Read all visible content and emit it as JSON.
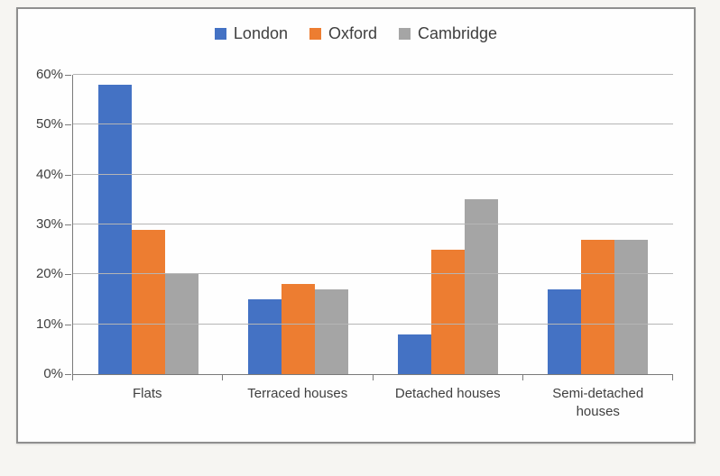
{
  "chart_data": {
    "type": "bar",
    "title": "",
    "xlabel": "",
    "ylabel": "",
    "categories": [
      "Flats",
      "Terraced houses",
      "Detached houses",
      "Semi-detached houses"
    ],
    "series": [
      {
        "name": "London",
        "color": "#4472C4",
        "values": [
          58,
          15,
          8,
          17
        ]
      },
      {
        "name": "Oxford",
        "color": "#ED7D31",
        "values": [
          29,
          18,
          25,
          27
        ]
      },
      {
        "name": "Cambridge",
        "color": "#A5A5A5",
        "values": [
          20,
          17,
          35,
          27
        ]
      }
    ],
    "ylim": [
      0,
      60
    ],
    "ytick_step": 10,
    "ytick_labels": [
      "0%",
      "10%",
      "20%",
      "30%",
      "40%",
      "50%",
      "60%"
    ],
    "grid": true,
    "legend_position": "top-center",
    "colors": {
      "page_background": "#f6f5f2",
      "plot_background": "#fefefe",
      "frame_border": "#8f8f8f",
      "gridline": "#b5b5b5",
      "axis": "#7a7a7a",
      "text": "#3f3f3f"
    }
  }
}
